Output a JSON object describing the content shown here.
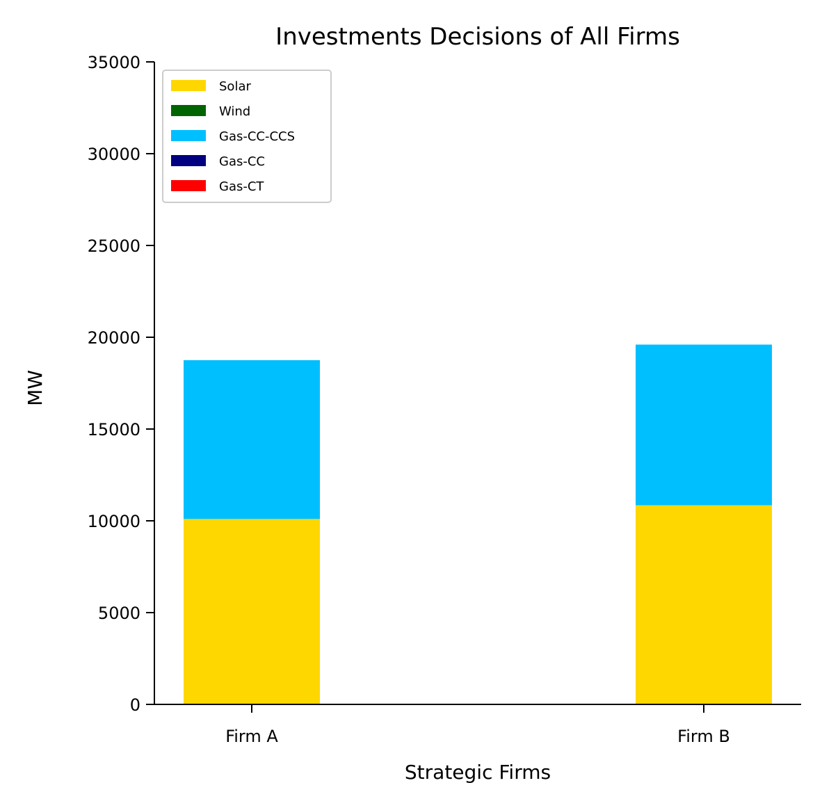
{
  "chart_data": {
    "type": "bar",
    "stacked": true,
    "title": "Investments Decisions of All Firms",
    "xlabel": "Strategic Firms",
    "ylabel": "MW",
    "categories": [
      "Firm A",
      "Firm B"
    ],
    "ylim": [
      0,
      35000
    ],
    "yticks": [
      0,
      5000,
      10000,
      15000,
      20000,
      25000,
      30000,
      35000
    ],
    "grid": false,
    "legend_position": "top-left",
    "series": [
      {
        "name": "Solar",
        "color": "#FFD700",
        "values": [
          10100,
          10850
        ]
      },
      {
        "name": "Wind",
        "color": "#006400",
        "values": [
          0,
          0
        ]
      },
      {
        "name": "Gas-CC-CCS",
        "color": "#00BFFF",
        "values": [
          8650,
          8750
        ]
      },
      {
        "name": "Gas-CC",
        "color": "#000080",
        "values": [
          0,
          0
        ]
      },
      {
        "name": "Gas-CT",
        "color": "#FF0000",
        "values": [
          0,
          0
        ]
      }
    ]
  }
}
